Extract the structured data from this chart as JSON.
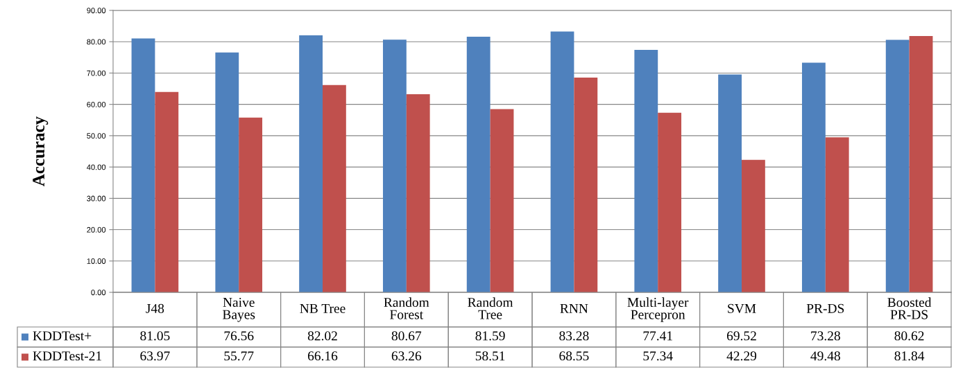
{
  "chart_data": {
    "type": "bar",
    "ylabel": "Accuracy",
    "categories": [
      "J48",
      "Naive Bayes",
      "NB Tree",
      "Random Forest",
      "Random Tree",
      "RNN",
      "Multi-layer Percepron",
      "SVM",
      "PR-DS",
      "Boosted PR-DS"
    ],
    "series": [
      {
        "name": "KDDTest+",
        "color": "#4f81bd",
        "values": [
          81.05,
          76.56,
          82.02,
          80.67,
          81.59,
          83.28,
          77.41,
          69.52,
          73.28,
          80.62
        ]
      },
      {
        "name": "KDDTest-21",
        "color": "#c0504d",
        "values": [
          63.97,
          55.77,
          66.16,
          63.26,
          58.51,
          68.55,
          57.34,
          42.29,
          49.48,
          81.84
        ]
      }
    ],
    "ylim": [
      0,
      90
    ],
    "yticks": [
      {
        "value": 0,
        "label": "0.00"
      },
      {
        "value": 10,
        "label": "10.00"
      },
      {
        "value": 20,
        "label": "20.00"
      },
      {
        "value": 30,
        "label": "30.00"
      },
      {
        "value": 40,
        "label": "40.00"
      },
      {
        "value": 50,
        "label": "50.00"
      },
      {
        "value": 60,
        "label": "60.00"
      },
      {
        "value": 70,
        "label": "70.00"
      },
      {
        "value": 80,
        "label": "80.00"
      },
      {
        "value": 90,
        "label": "90.00"
      }
    ],
    "grid": "y",
    "legend": "bottom",
    "data_labels": true
  }
}
